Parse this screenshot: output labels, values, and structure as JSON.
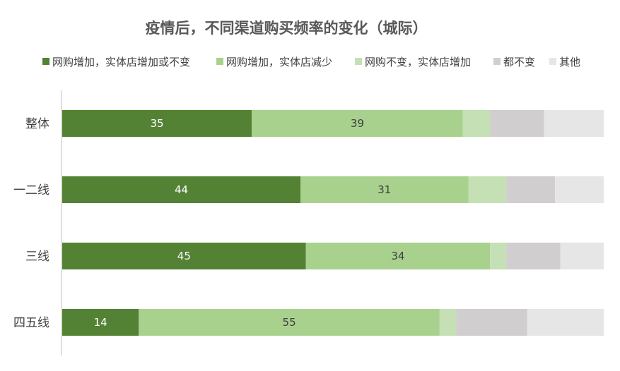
{
  "chart_data": {
    "type": "bar",
    "orientation": "horizontal",
    "stacked": true,
    "normalized": true,
    "title": "疫情后，不同渠道购买频率的变化（城际）",
    "categories": [
      "整体",
      "一二线",
      "三线",
      "四五线"
    ],
    "series": [
      {
        "name": "网购增加，实体店增加或不变",
        "color": "#548235",
        "values": [
          35,
          44,
          45,
          14
        ],
        "labels": [
          "35",
          "44",
          "45",
          "14"
        ],
        "label_color": "#ffffff"
      },
      {
        "name": "网购增加，实体店减少",
        "color": "#a9d18e",
        "values": [
          39,
          31,
          34,
          55
        ],
        "labels": [
          "39",
          "31",
          "34",
          "55"
        ],
        "label_color": "#404040"
      },
      {
        "name": "网购不变，实体店增加",
        "color": "#c5e0b4",
        "values": [
          5,
          7,
          3,
          3
        ],
        "labels": [
          "",
          "",
          "",
          ""
        ],
        "label_color": "#404040"
      },
      {
        "name": "都不变",
        "color": "#d0cece",
        "values": [
          10,
          9,
          10,
          13
        ],
        "labels": [
          "",
          "",
          "",
          ""
        ],
        "label_color": "#404040"
      },
      {
        "name": "其他",
        "color": "#e7e6e6",
        "values": [
          11,
          9,
          8,
          14
        ],
        "labels": [
          "",
          "",
          "",
          ""
        ],
        "label_color": "#404040"
      }
    ],
    "xlim": [
      0,
      100
    ],
    "grid": false,
    "legend_position": "top"
  }
}
